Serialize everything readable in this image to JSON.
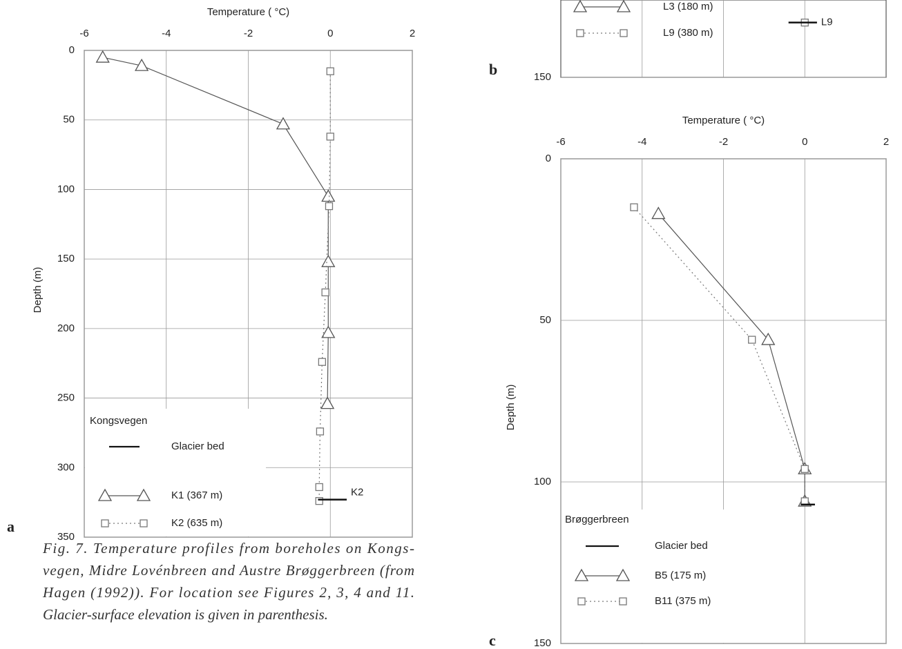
{
  "chart_data": [
    {
      "type": "line",
      "panel": "a",
      "title": "Temperature ( °C)",
      "y_label": "Depth (m)",
      "xlim": [
        -6,
        2
      ],
      "xticks": [
        -6,
        -4,
        -2,
        0,
        2
      ],
      "ylim": [
        0,
        350
      ],
      "yticks": [
        0,
        50,
        100,
        150,
        200,
        250,
        300,
        350
      ],
      "grid": true,
      "series": [
        {
          "name": "K1  (367 m)",
          "marker": "triangle",
          "linestyle": "solid",
          "color": "#555555",
          "x": [
            -5.55,
            -4.6,
            -1.15,
            -0.05,
            -0.05,
            -0.05,
            -0.07
          ],
          "values": [
            5,
            11,
            53,
            105,
            152,
            203,
            254
          ]
        },
        {
          "name": "K2  (635 m)",
          "marker": "square",
          "linestyle": "dotted",
          "color": "#777777",
          "x": [
            0,
            0,
            -0.03,
            -0.12,
            -0.2,
            -0.25,
            -0.27,
            -0.27
          ],
          "values": [
            15,
            62,
            112,
            174,
            224,
            274,
            314,
            324
          ]
        }
      ],
      "glacier_bed": {
        "depth": 323,
        "x": [
          -0.3,
          0.4
        ],
        "label": "K2"
      },
      "legend": {
        "corner": "bottom-left",
        "title": "Kongsvegen",
        "bed_label": "Glacier bed"
      }
    },
    {
      "type": "line",
      "panel": "b",
      "xlim": [
        -6,
        2
      ],
      "xgrid": [
        -4,
        -2,
        0
      ],
      "ylim": [
        126,
        150
      ],
      "yticks": [
        150
      ],
      "grid": true,
      "series": [
        {
          "name": "L3  (180 m)",
          "marker": "triangle",
          "linestyle": "solid",
          "color": "#555555",
          "x": [],
          "values": []
        },
        {
          "name": "L9  (380 m)",
          "marker": "square",
          "linestyle": "dotted",
          "color": "#777777",
          "x": [
            0
          ],
          "values": [
            133
          ]
        }
      ],
      "glacier_bed": {
        "depth": 133,
        "x": [
          -0.4,
          0.3
        ],
        "label": "L9"
      },
      "legend": {
        "corner": "top-left"
      }
    },
    {
      "type": "line",
      "panel": "c",
      "title": "Temperature ( °C)",
      "y_label": "Depth (m)",
      "xlim": [
        -6,
        2
      ],
      "xticks": [
        -6,
        -4,
        -2,
        0,
        2
      ],
      "ylim": [
        0,
        150
      ],
      "yticks": [
        0,
        50,
        100,
        150
      ],
      "grid": true,
      "series": [
        {
          "name": "B5   (175 m)",
          "marker": "triangle",
          "linestyle": "solid",
          "color": "#555555",
          "x": [
            -3.6,
            -0.9,
            0,
            0
          ],
          "values": [
            17,
            56,
            96,
            106
          ]
        },
        {
          "name": "B11 (375 m)",
          "marker": "square",
          "linestyle": "dotted",
          "color": "#777777",
          "x": [
            -4.2,
            -1.3,
            0,
            0
          ],
          "values": [
            15,
            56,
            96,
            106
          ]
        }
      ],
      "glacier_bed": {
        "depth": 107,
        "x": [
          -0.1,
          0.25
        ]
      },
      "legend": {
        "corner": "bottom-left",
        "title": "Brøggerbreen",
        "bed_label": "Glacier bed"
      }
    }
  ],
  "caption": [
    "Fig. 7. Temperature profiles from boreholes on Kongs-",
    "vegen, Midre Lovénbreen and Austre Brøggerbreen (from",
    "Hagen (1992)). For location see Figures 2, 3, 4 and 11.",
    "Glacier-surface elevation is given in parenthesis."
  ]
}
